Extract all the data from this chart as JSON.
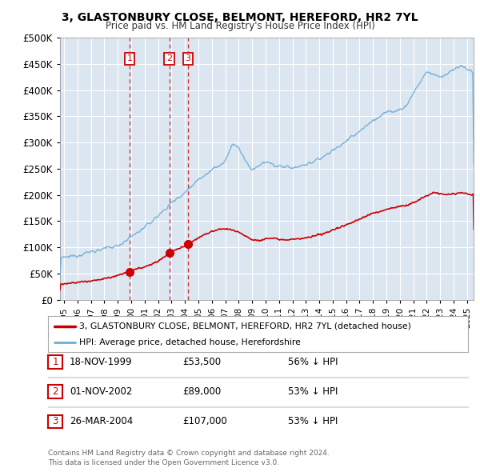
{
  "title": "3, GLASTONBURY CLOSE, BELMONT, HEREFORD, HR2 7YL",
  "subtitle": "Price paid vs. HM Land Registry's House Price Index (HPI)",
  "transactions": [
    {
      "num": 1,
      "date_str": "18-NOV-1999",
      "date_x": 1999.88,
      "price": 53500,
      "price_str": "£53,500",
      "pct": "56% ↓ HPI"
    },
    {
      "num": 2,
      "date_str": "01-NOV-2002",
      "date_x": 2002.83,
      "price": 89000,
      "price_str": "£89,000",
      "pct": "53% ↓ HPI"
    },
    {
      "num": 3,
      "date_str": "26-MAR-2004",
      "date_x": 2004.23,
      "price": 107000,
      "price_str": "£107,000",
      "pct": "53% ↓ HPI"
    }
  ],
  "legend_line1": "3, GLASTONBURY CLOSE, BELMONT, HEREFORD, HR2 7YL (detached house)",
  "legend_line2": "HPI: Average price, detached house, Herefordshire",
  "footer_line1": "Contains HM Land Registry data © Crown copyright and database right 2024.",
  "footer_line2": "This data is licensed under the Open Government Licence v3.0.",
  "red_color": "#cc0000",
  "blue_color": "#6baed6",
  "background_plot": "#dce6f1",
  "background_fig": "#ffffff",
  "ylim": [
    0,
    500000
  ],
  "xlim": [
    1994.7,
    2025.5
  ],
  "yticks": [
    0,
    50000,
    100000,
    150000,
    200000,
    250000,
    300000,
    350000,
    400000,
    450000,
    500000
  ],
  "xticks": [
    1995,
    1996,
    1997,
    1998,
    1999,
    2000,
    2001,
    2002,
    2003,
    2004,
    2005,
    2006,
    2007,
    2008,
    2009,
    2010,
    2011,
    2012,
    2013,
    2014,
    2015,
    2016,
    2017,
    2018,
    2019,
    2020,
    2021,
    2022,
    2023,
    2024,
    2025
  ]
}
